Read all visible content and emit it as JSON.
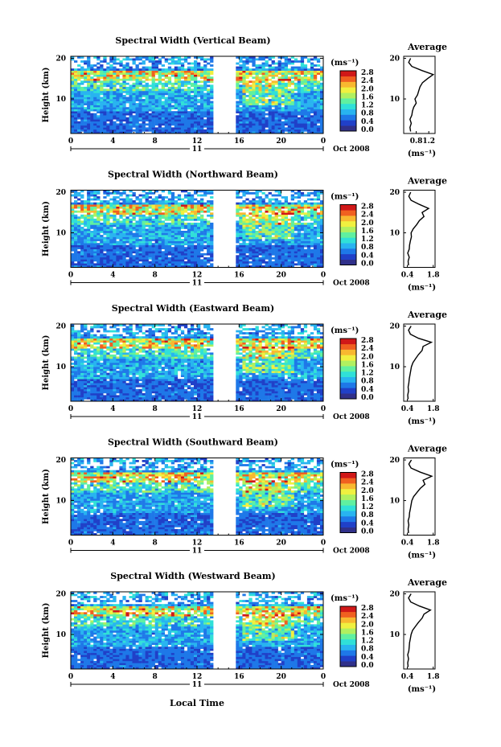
{
  "figure": {
    "x_axis_label": "Local Time",
    "day_label": "11",
    "date_label": "Oct 2008",
    "y_axis_label": "Height (km)",
    "unit_label": "(ms⁻¹)",
    "average_title": "Average",
    "colors": [
      "#30308a",
      "#2040c8",
      "#1e78e8",
      "#28b4f0",
      "#30e0d8",
      "#60f0a0",
      "#b0f060",
      "#f0f040",
      "#f8b830",
      "#f06020",
      "#d01818"
    ]
  },
  "chart_data": [
    {
      "type": "heatmap",
      "title": "Spectral Width (Vertical Beam)",
      "x_ticks": [
        "0",
        "4",
        "8",
        "12",
        "16",
        "20",
        "0"
      ],
      "xlim": [
        0,
        24
      ],
      "y_ticks": [
        "10",
        "20"
      ],
      "ylim": [
        1.5,
        20.5
      ],
      "colorbar_ticks": [
        "2.8",
        "2.4",
        "2.0",
        "1.6",
        "1.2",
        "0.8",
        "0.4",
        "0.0"
      ],
      "colorbar_range": [
        0.0,
        2.8
      ],
      "gaps_hours": [
        [
          13.8,
          14.5
        ],
        [
          15.0,
          15.5
        ]
      ],
      "tropopause_km": 16.0,
      "average_profile": {
        "xlim": [
          0.4,
          1.4
        ],
        "x_ticks": [
          "0.8",
          "1.2"
        ],
        "x_tick_values": [
          0.8,
          1.2
        ],
        "heights": [
          2,
          3,
          4,
          5,
          6,
          7,
          8,
          9,
          10,
          11,
          12,
          13,
          14,
          15,
          16,
          17,
          18,
          19,
          20
        ],
        "values": [
          0.62,
          0.6,
          0.64,
          0.6,
          0.66,
          0.68,
          0.72,
          0.8,
          0.76,
          0.84,
          0.88,
          0.92,
          1.0,
          1.16,
          1.34,
          0.98,
          0.66,
          0.56,
          0.62
        ]
      }
    },
    {
      "type": "heatmap",
      "title": "Spectral Width (Northward Beam)",
      "x_ticks": [
        "0",
        "4",
        "8",
        "12",
        "16",
        "20",
        "0"
      ],
      "xlim": [
        0,
        24
      ],
      "y_ticks": [
        "10",
        "20"
      ],
      "ylim": [
        1.5,
        20.5
      ],
      "colorbar_ticks": [
        "2.8",
        "2.4",
        "2.0",
        "1.6",
        "1.2",
        "0.8",
        "0.4",
        "0.0"
      ],
      "colorbar_range": [
        0.0,
        2.8
      ],
      "gaps_hours": [
        [
          13.8,
          14.5
        ],
        [
          15.0,
          15.5
        ]
      ],
      "tropopause_km": 16.0,
      "average_profile": {
        "xlim": [
          0.2,
          1.9
        ],
        "x_ticks": [
          "0.4",
          "1.8"
        ],
        "x_tick_values": [
          0.4,
          1.8
        ],
        "heights": [
          2,
          3,
          4,
          5,
          6,
          7,
          8,
          9,
          10,
          11,
          12,
          13,
          14,
          15,
          16,
          17,
          18,
          19,
          20
        ],
        "values": [
          0.46,
          0.44,
          0.5,
          0.42,
          0.5,
          0.52,
          0.56,
          0.62,
          0.6,
          0.72,
          0.9,
          1.05,
          1.3,
          1.2,
          1.55,
          1.05,
          0.6,
          0.48,
          0.58
        ]
      }
    },
    {
      "type": "heatmap",
      "title": "Spectral Width (Eastward Beam)",
      "x_ticks": [
        "0",
        "4",
        "8",
        "12",
        "16",
        "20",
        "0"
      ],
      "xlim": [
        0,
        24
      ],
      "y_ticks": [
        "10",
        "20"
      ],
      "ylim": [
        1.5,
        20.5
      ],
      "colorbar_ticks": [
        "2.8",
        "2.4",
        "2.0",
        "1.6",
        "1.2",
        "0.8",
        "0.4",
        "0.0"
      ],
      "colorbar_range": [
        0.0,
        2.8
      ],
      "gaps_hours": [
        [
          13.8,
          14.5
        ],
        [
          15.0,
          15.5
        ]
      ],
      "tropopause_km": 16.0,
      "average_profile": {
        "xlim": [
          0.2,
          1.9
        ],
        "x_ticks": [
          "0.4",
          "1.8"
        ],
        "x_tick_values": [
          0.4,
          1.8
        ],
        "heights": [
          2,
          3,
          4,
          5,
          6,
          7,
          8,
          9,
          10,
          11,
          12,
          13,
          14,
          15,
          16,
          17,
          18,
          19,
          20
        ],
        "values": [
          0.44,
          0.42,
          0.46,
          0.44,
          0.48,
          0.5,
          0.54,
          0.58,
          0.62,
          0.7,
          0.85,
          1.0,
          1.2,
          1.25,
          1.7,
          1.0,
          0.56,
          0.46,
          0.6
        ]
      }
    },
    {
      "type": "heatmap",
      "title": "Spectral Width (Southward Beam)",
      "x_ticks": [
        "0",
        "4",
        "8",
        "12",
        "16",
        "20",
        "0"
      ],
      "xlim": [
        0,
        24
      ],
      "y_ticks": [
        "10",
        "20"
      ],
      "ylim": [
        1.5,
        20.5
      ],
      "colorbar_ticks": [
        "2.8",
        "2.4",
        "2.0",
        "1.6",
        "1.2",
        "0.8",
        "0.4",
        "0.0"
      ],
      "colorbar_range": [
        0.0,
        2.8
      ],
      "gaps_hours": [
        [
          13.8,
          14.5
        ],
        [
          15.0,
          15.5
        ]
      ],
      "tropopause_km": 16.0,
      "average_profile": {
        "xlim": [
          0.2,
          1.9
        ],
        "x_ticks": [
          "0.4",
          "1.8"
        ],
        "x_tick_values": [
          0.4,
          1.8
        ],
        "heights": [
          2,
          3,
          4,
          5,
          6,
          7,
          8,
          9,
          10,
          11,
          12,
          13,
          14,
          15,
          16,
          17,
          18,
          19,
          20
        ],
        "values": [
          0.46,
          0.44,
          0.48,
          0.44,
          0.5,
          0.52,
          0.56,
          0.6,
          0.64,
          0.74,
          0.92,
          1.1,
          1.35,
          1.25,
          1.72,
          1.1,
          0.6,
          0.48,
          0.62
        ]
      }
    },
    {
      "type": "heatmap",
      "title": "Spectral Width (Westward Beam)",
      "x_ticks": [
        "0",
        "4",
        "8",
        "12",
        "16",
        "20",
        "0"
      ],
      "xlim": [
        0,
        24
      ],
      "y_ticks": [
        "10",
        "20"
      ],
      "ylim": [
        1.5,
        20.5
      ],
      "colorbar_ticks": [
        "2.8",
        "2.4",
        "2.0",
        "1.6",
        "1.2",
        "0.8",
        "0.4",
        "0.0"
      ],
      "colorbar_range": [
        0.0,
        2.8
      ],
      "gaps_hours": [
        [
          13.8,
          14.5
        ],
        [
          15.0,
          15.5
        ]
      ],
      "tropopause_km": 16.0,
      "average_profile": {
        "xlim": [
          0.2,
          1.9
        ],
        "x_ticks": [
          "0.4",
          "1.8"
        ],
        "x_tick_values": [
          0.4,
          1.8
        ],
        "heights": [
          2,
          3,
          4,
          5,
          6,
          7,
          8,
          9,
          10,
          11,
          12,
          13,
          14,
          15,
          16,
          17,
          18,
          19,
          20
        ],
        "values": [
          0.44,
          0.42,
          0.46,
          0.42,
          0.48,
          0.5,
          0.52,
          0.56,
          0.6,
          0.68,
          0.84,
          1.0,
          1.2,
          1.3,
          1.65,
          1.05,
          0.58,
          0.46,
          0.6
        ]
      }
    }
  ]
}
